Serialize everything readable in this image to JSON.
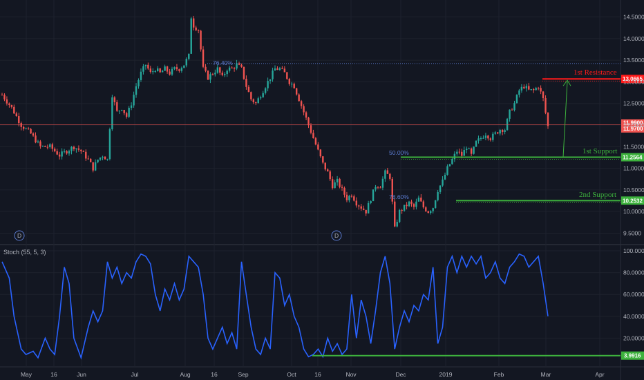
{
  "chart_data": [
    {
      "type": "candlestick",
      "ylim": [
        9.3,
        14.7
      ],
      "y_ticks": [
        9.5,
        10.0,
        10.5,
        11.0,
        11.5,
        12.0,
        12.5,
        13.0,
        13.5,
        14.0,
        14.5
      ],
      "y_tick_labels": [
        "9.5000",
        "10.0000",
        "10.5000",
        "11.0000",
        "11.5000",
        "12.0000",
        "12.5000",
        "13.0000",
        "13.5000",
        "14.0000",
        "14.5000"
      ],
      "x_labels": [
        "May",
        "16",
        "Jun",
        "Jul",
        "Aug",
        "16",
        "Sep",
        "Oct",
        "16",
        "Nov",
        "Dec",
        "2019",
        "Feb",
        "Mar",
        "Apr"
      ],
      "close_path": [
        [
          0,
          12.7
        ],
        [
          4,
          12.4
        ],
        [
          8,
          12.0
        ],
        [
          12,
          11.8
        ],
        [
          16,
          11.5
        ],
        [
          20,
          11.5
        ],
        [
          24,
          11.3
        ],
        [
          27,
          11.4
        ],
        [
          30,
          11.5
        ],
        [
          33,
          11.4
        ],
        [
          36,
          11.2
        ],
        [
          38,
          11.0
        ],
        [
          40,
          11.2
        ],
        [
          42,
          11.3
        ],
        [
          44,
          11.2
        ],
        [
          46,
          12.7
        ],
        [
          48,
          12.3
        ],
        [
          50,
          12.4
        ],
        [
          52,
          12.2
        ],
        [
          54,
          12.5
        ],
        [
          56,
          12.9
        ],
        [
          58,
          13.2
        ],
        [
          60,
          13.4
        ],
        [
          62,
          13.2
        ],
        [
          64,
          13.3
        ],
        [
          66,
          13.2
        ],
        [
          68,
          13.3
        ],
        [
          70,
          13.2
        ],
        [
          72,
          13.3
        ],
        [
          74,
          13.3
        ],
        [
          76,
          13.4
        ],
        [
          78,
          13.6
        ],
        [
          79,
          14.5
        ],
        [
          80,
          14.3
        ],
        [
          82,
          14.2
        ],
        [
          84,
          13.3
        ],
        [
          86,
          13.1
        ],
        [
          88,
          13.2
        ],
        [
          90,
          13.3
        ],
        [
          92,
          13.1
        ],
        [
          94,
          13.3
        ],
        [
          96,
          13.3
        ],
        [
          98,
          13.4
        ],
        [
          100,
          13.3
        ],
        [
          102,
          12.9
        ],
        [
          104,
          12.6
        ],
        [
          106,
          12.5
        ],
        [
          108,
          12.7
        ],
        [
          110,
          12.9
        ],
        [
          112,
          13.1
        ],
        [
          114,
          13.3
        ],
        [
          116,
          13.3
        ],
        [
          118,
          13.2
        ],
        [
          120,
          13.0
        ],
        [
          122,
          12.9
        ],
        [
          124,
          12.6
        ],
        [
          126,
          12.3
        ],
        [
          128,
          12.0
        ],
        [
          130,
          11.7
        ],
        [
          132,
          11.4
        ],
        [
          134,
          11.1
        ],
        [
          136,
          10.9
        ],
        [
          138,
          10.6
        ],
        [
          140,
          10.7
        ],
        [
          142,
          10.5
        ],
        [
          144,
          10.3
        ],
        [
          146,
          10.4
        ],
        [
          148,
          10.2
        ],
        [
          150,
          10.1
        ],
        [
          152,
          10.0
        ],
        [
          154,
          10.3
        ],
        [
          156,
          10.6
        ],
        [
          158,
          10.6
        ],
        [
          160,
          10.9
        ],
        [
          162,
          10.8
        ],
        [
          164,
          9.6
        ],
        [
          166,
          10.0
        ],
        [
          168,
          10.1
        ],
        [
          170,
          10.2
        ],
        [
          172,
          10.1
        ],
        [
          174,
          10.3
        ],
        [
          176,
          10.1
        ],
        [
          178,
          10.0
        ],
        [
          180,
          10.1
        ],
        [
          182,
          10.5
        ],
        [
          184,
          10.7
        ],
        [
          186,
          11.0
        ],
        [
          188,
          11.2
        ],
        [
          190,
          11.4
        ],
        [
          192,
          11.3
        ],
        [
          194,
          11.5
        ],
        [
          196,
          11.3
        ],
        [
          198,
          11.6
        ],
        [
          200,
          11.7
        ],
        [
          202,
          11.8
        ],
        [
          204,
          11.7
        ],
        [
          206,
          11.8
        ],
        [
          208,
          11.9
        ],
        [
          210,
          11.9
        ],
        [
          212,
          12.3
        ],
        [
          214,
          12.5
        ],
        [
          216,
          12.8
        ],
        [
          218,
          12.9
        ],
        [
          220,
          12.8
        ],
        [
          222,
          12.8
        ],
        [
          224,
          12.9
        ],
        [
          226,
          12.6
        ],
        [
          228,
          11.97
        ]
      ],
      "last_price": 11.97,
      "current_price": 11.99,
      "horizontal_levels": [
        {
          "name": "1st Resistance",
          "value": 13.0665,
          "tag": "13.0665",
          "color": "#ff1a1a"
        },
        {
          "name": "1st Support",
          "value": 11.2564,
          "tag": "11.2564",
          "color": "#3db23d"
        },
        {
          "name": "2nd Support",
          "value": 10.2532,
          "tag": "10.2532",
          "color": "#3db23d"
        }
      ],
      "price_tags": [
        "11.9900",
        "11.9700"
      ],
      "fib_labels": [
        "76.40%",
        "50.00%",
        "78.60%"
      ],
      "annotations": [
        "1st Resistance",
        "1st Support",
        "2nd Support"
      ],
      "markers": [
        "D",
        "D"
      ]
    },
    {
      "type": "line",
      "title": "Stoch (55, 5, 3)",
      "ylim": [
        0,
        100
      ],
      "y_ticks": [
        20,
        40,
        60,
        80,
        100
      ],
      "y_tick_labels": [
        "20.0000",
        "40.0000",
        "60.0000",
        "80.0000",
        "100.0000"
      ],
      "series": [
        {
          "color": "#2962ff",
          "points": [
            [
              0,
              90
            ],
            [
              3,
              75
            ],
            [
              5,
              40
            ],
            [
              8,
              10
            ],
            [
              10,
              5
            ],
            [
              13,
              8
            ],
            [
              15,
              2
            ],
            [
              18,
              20
            ],
            [
              20,
              10
            ],
            [
              22,
              5
            ],
            [
              24,
              40
            ],
            [
              26,
              85
            ],
            [
              28,
              70
            ],
            [
              30,
              20
            ],
            [
              33,
              2
            ],
            [
              36,
              30
            ],
            [
              38,
              45
            ],
            [
              40,
              35
            ],
            [
              42,
              45
            ],
            [
              44,
              90
            ],
            [
              46,
              75
            ],
            [
              48,
              85
            ],
            [
              50,
              70
            ],
            [
              52,
              80
            ],
            [
              54,
              75
            ],
            [
              56,
              90
            ],
            [
              58,
              97
            ],
            [
              60,
              95
            ],
            [
              62,
              88
            ],
            [
              64,
              60
            ],
            [
              66,
              45
            ],
            [
              68,
              65
            ],
            [
              70,
              55
            ],
            [
              72,
              70
            ],
            [
              74,
              55
            ],
            [
              76,
              65
            ],
            [
              78,
              95
            ],
            [
              80,
              90
            ],
            [
              82,
              85
            ],
            [
              84,
              60
            ],
            [
              86,
              20
            ],
            [
              88,
              10
            ],
            [
              90,
              20
            ],
            [
              92,
              30
            ],
            [
              94,
              15
            ],
            [
              96,
              25
            ],
            [
              98,
              10
            ],
            [
              100,
              90
            ],
            [
              102,
              60
            ],
            [
              104,
              30
            ],
            [
              106,
              10
            ],
            [
              108,
              5
            ],
            [
              110,
              20
            ],
            [
              112,
              10
            ],
            [
              114,
              80
            ],
            [
              116,
              75
            ],
            [
              118,
              50
            ],
            [
              120,
              60
            ],
            [
              122,
              40
            ],
            [
              124,
              30
            ],
            [
              126,
              10
            ],
            [
              128,
              3
            ],
            [
              130,
              5
            ],
            [
              132,
              10
            ],
            [
              134,
              3
            ],
            [
              136,
              20
            ],
            [
              138,
              8
            ],
            [
              140,
              15
            ],
            [
              142,
              5
            ],
            [
              144,
              10
            ],
            [
              146,
              60
            ],
            [
              148,
              20
            ],
            [
              150,
              55
            ],
            [
              152,
              40
            ],
            [
              154,
              15
            ],
            [
              156,
              45
            ],
            [
              158,
              80
            ],
            [
              160,
              95
            ],
            [
              162,
              70
            ],
            [
              164,
              10
            ],
            [
              166,
              30
            ],
            [
              168,
              45
            ],
            [
              170,
              35
            ],
            [
              172,
              50
            ],
            [
              174,
              45
            ],
            [
              176,
              60
            ],
            [
              178,
              55
            ],
            [
              180,
              85
            ],
            [
              182,
              15
            ],
            [
              184,
              30
            ],
            [
              186,
              85
            ],
            [
              188,
              95
            ],
            [
              190,
              80
            ],
            [
              192,
              95
            ],
            [
              194,
              85
            ],
            [
              196,
              95
            ],
            [
              198,
              88
            ],
            [
              200,
              95
            ],
            [
              202,
              75
            ],
            [
              204,
              80
            ],
            [
              206,
              90
            ],
            [
              208,
              75
            ],
            [
              210,
              70
            ],
            [
              212,
              85
            ],
            [
              214,
              90
            ],
            [
              216,
              97
            ],
            [
              218,
              95
            ],
            [
              220,
              85
            ],
            [
              222,
              90
            ],
            [
              224,
              95
            ],
            [
              226,
              70
            ],
            [
              228,
              40
            ]
          ]
        }
      ],
      "support_level": {
        "value": 3.9916,
        "tag": "3.9916",
        "color": "#3db23d"
      }
    }
  ],
  "colors": {
    "background": "#131722",
    "grid": "#1e222d",
    "up": "#26a69a",
    "down": "#ef5350",
    "stoch": "#2962ff",
    "resistance": "#ff1a1a",
    "support": "#3db23d",
    "fib": "#5b7bd0"
  }
}
